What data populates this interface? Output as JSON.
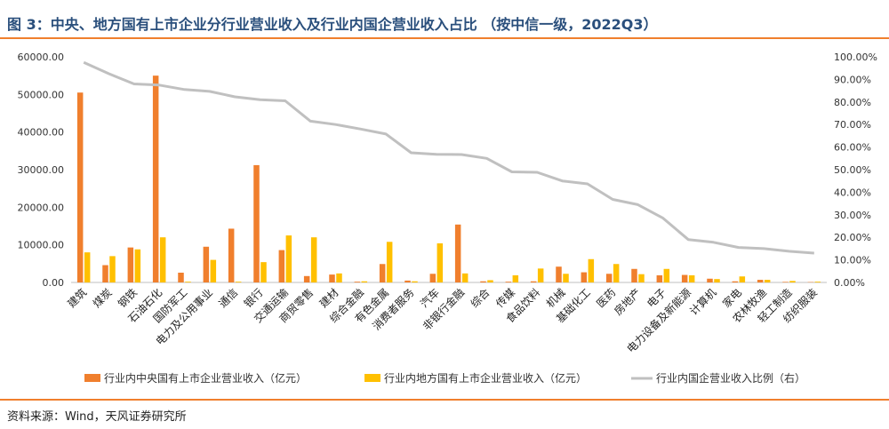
{
  "title": "图 3：中央、地方国有上市企业分行业营业收入及行业内国企营业收入占比 （按中信一级，2022Q3）",
  "source": "资料来源：Wind，天风证券研究所",
  "colors": {
    "central": "#f07f2d",
    "local": "#ffc000",
    "ratio": "#c0c0c0",
    "accent": "#f07f2d",
    "title": "#2a4f7c"
  },
  "chart_data": {
    "type": "bar",
    "categories": [
      "建筑",
      "煤炭",
      "钢铁",
      "石油石化",
      "国防军工",
      "电力及公用事业",
      "通信",
      "银行",
      "交通运输",
      "商贸零售",
      "建材",
      "综合金融",
      "有色金属",
      "消费者服务",
      "汽车",
      "非银行金融",
      "综合",
      "传媒",
      "食品饮料",
      "机械",
      "基础化工",
      "医药",
      "房地产",
      "电子",
      "电力设备及新能源",
      "计算机",
      "家电",
      "农林牧渔",
      "轻工制造",
      "纺织服装"
    ],
    "series": [
      {
        "name": "行业内中央国有上市企业营业收入（亿元）",
        "type": "bar",
        "axis": "left",
        "values": [
          50500,
          4600,
          9300,
          55000,
          2600,
          9500,
          14300,
          31200,
          8600,
          1700,
          2100,
          200,
          4900,
          500,
          2300,
          15400,
          300,
          200,
          300,
          4200,
          2700,
          2300,
          3600,
          1900,
          2000,
          1000,
          300,
          700,
          150,
          100
        ]
      },
      {
        "name": "行业内地方国有上市企业营业收入（亿元）",
        "type": "bar",
        "axis": "left",
        "values": [
          8000,
          7000,
          8800,
          12000,
          200,
          6000,
          200,
          5400,
          12500,
          12000,
          2400,
          300,
          10800,
          300,
          10400,
          2400,
          600,
          1900,
          3700,
          2300,
          6200,
          4900,
          2200,
          3600,
          1900,
          900,
          1600,
          700,
          400,
          200
        ]
      },
      {
        "name": "行业内国企营业收入比例（右）",
        "type": "line",
        "axis": "right",
        "values": [
          0.975,
          0.925,
          0.88,
          0.875,
          0.855,
          0.847,
          0.823,
          0.81,
          0.805,
          0.715,
          0.7,
          0.68,
          0.658,
          0.575,
          0.568,
          0.567,
          0.55,
          0.49,
          0.488,
          0.45,
          0.437,
          0.368,
          0.345,
          0.285,
          0.19,
          0.178,
          0.155,
          0.15,
          0.138,
          0.13
        ]
      }
    ],
    "left_axis": {
      "min": 0,
      "max": 60000,
      "step": 10000,
      "ticks": [
        "0.00",
        "10000.00",
        "20000.00",
        "30000.00",
        "40000.00",
        "50000.00",
        "60000.00"
      ]
    },
    "right_axis": {
      "min": 0,
      "max": 1,
      "step": 0.1,
      "ticks": [
        "0.00%",
        "10.00%",
        "20.00%",
        "30.00%",
        "40.00%",
        "50.00%",
        "60.00%",
        "70.00%",
        "80.00%",
        "90.00%",
        "100.00%"
      ]
    },
    "grid": false,
    "legend_position": "bottom"
  }
}
